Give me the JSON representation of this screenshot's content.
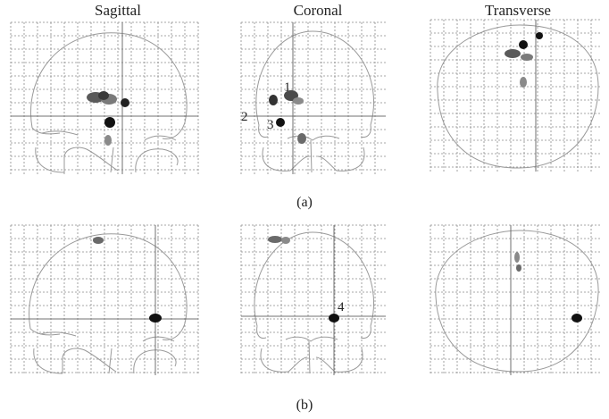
{
  "columns": {
    "sagittal": "Sagittal",
    "coronal": "Coronal",
    "transverse": "Transverse"
  },
  "rows": {
    "a": "(a)",
    "b": "(b)"
  },
  "annotations": {
    "n1": "1",
    "n2": "2",
    "n3": "3",
    "n4": "4"
  },
  "colors": {
    "grid": "#8a8a8a",
    "outline": "#9a9a9a",
    "crosshair": "#707070",
    "blob_dark": "#111111",
    "blob_mid": "#5a5a5a",
    "blob_light": "#9a9a9a"
  }
}
